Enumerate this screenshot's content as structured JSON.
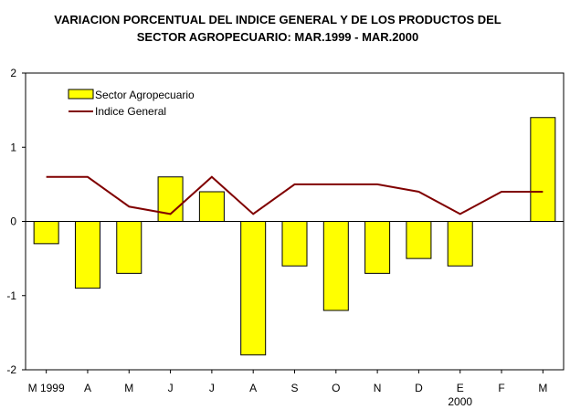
{
  "chart_data": {
    "type": "bar",
    "title_lines": [
      "VARIACION PORCENTUAL DEL INDICE GENERAL Y DE LOS PRODUCTOS DEL",
      "SECTOR AGROPECUARIO: MAR.1999 - MAR.2000"
    ],
    "categories": [
      "M 1999",
      "A",
      "M",
      "J",
      "J",
      "A",
      "S",
      "O",
      "N",
      "D",
      "E",
      "F",
      "M"
    ],
    "category_sublabels": [
      "",
      "",
      "",
      "",
      "",
      "",
      "",
      "",
      "",
      "",
      "2000",
      "",
      ""
    ],
    "series": [
      {
        "name": "Sector Agropecuario",
        "type": "bar",
        "color": "#FFFF00",
        "values": [
          -0.3,
          -0.9,
          -0.7,
          0.6,
          0.4,
          -1.8,
          -0.6,
          -1.2,
          -0.7,
          -0.5,
          -0.6,
          0.0,
          1.4
        ]
      },
      {
        "name": "Indice General",
        "type": "line",
        "color": "#800000",
        "values": [
          0.6,
          0.6,
          0.2,
          0.1,
          0.6,
          0.1,
          0.5,
          0.5,
          0.5,
          0.4,
          0.1,
          0.4,
          0.4
        ]
      }
    ],
    "ylim": [
      -2,
      2
    ],
    "yticks": [
      -2,
      -1,
      0,
      1,
      2
    ],
    "legend_position": "top-left",
    "grid": false
  }
}
